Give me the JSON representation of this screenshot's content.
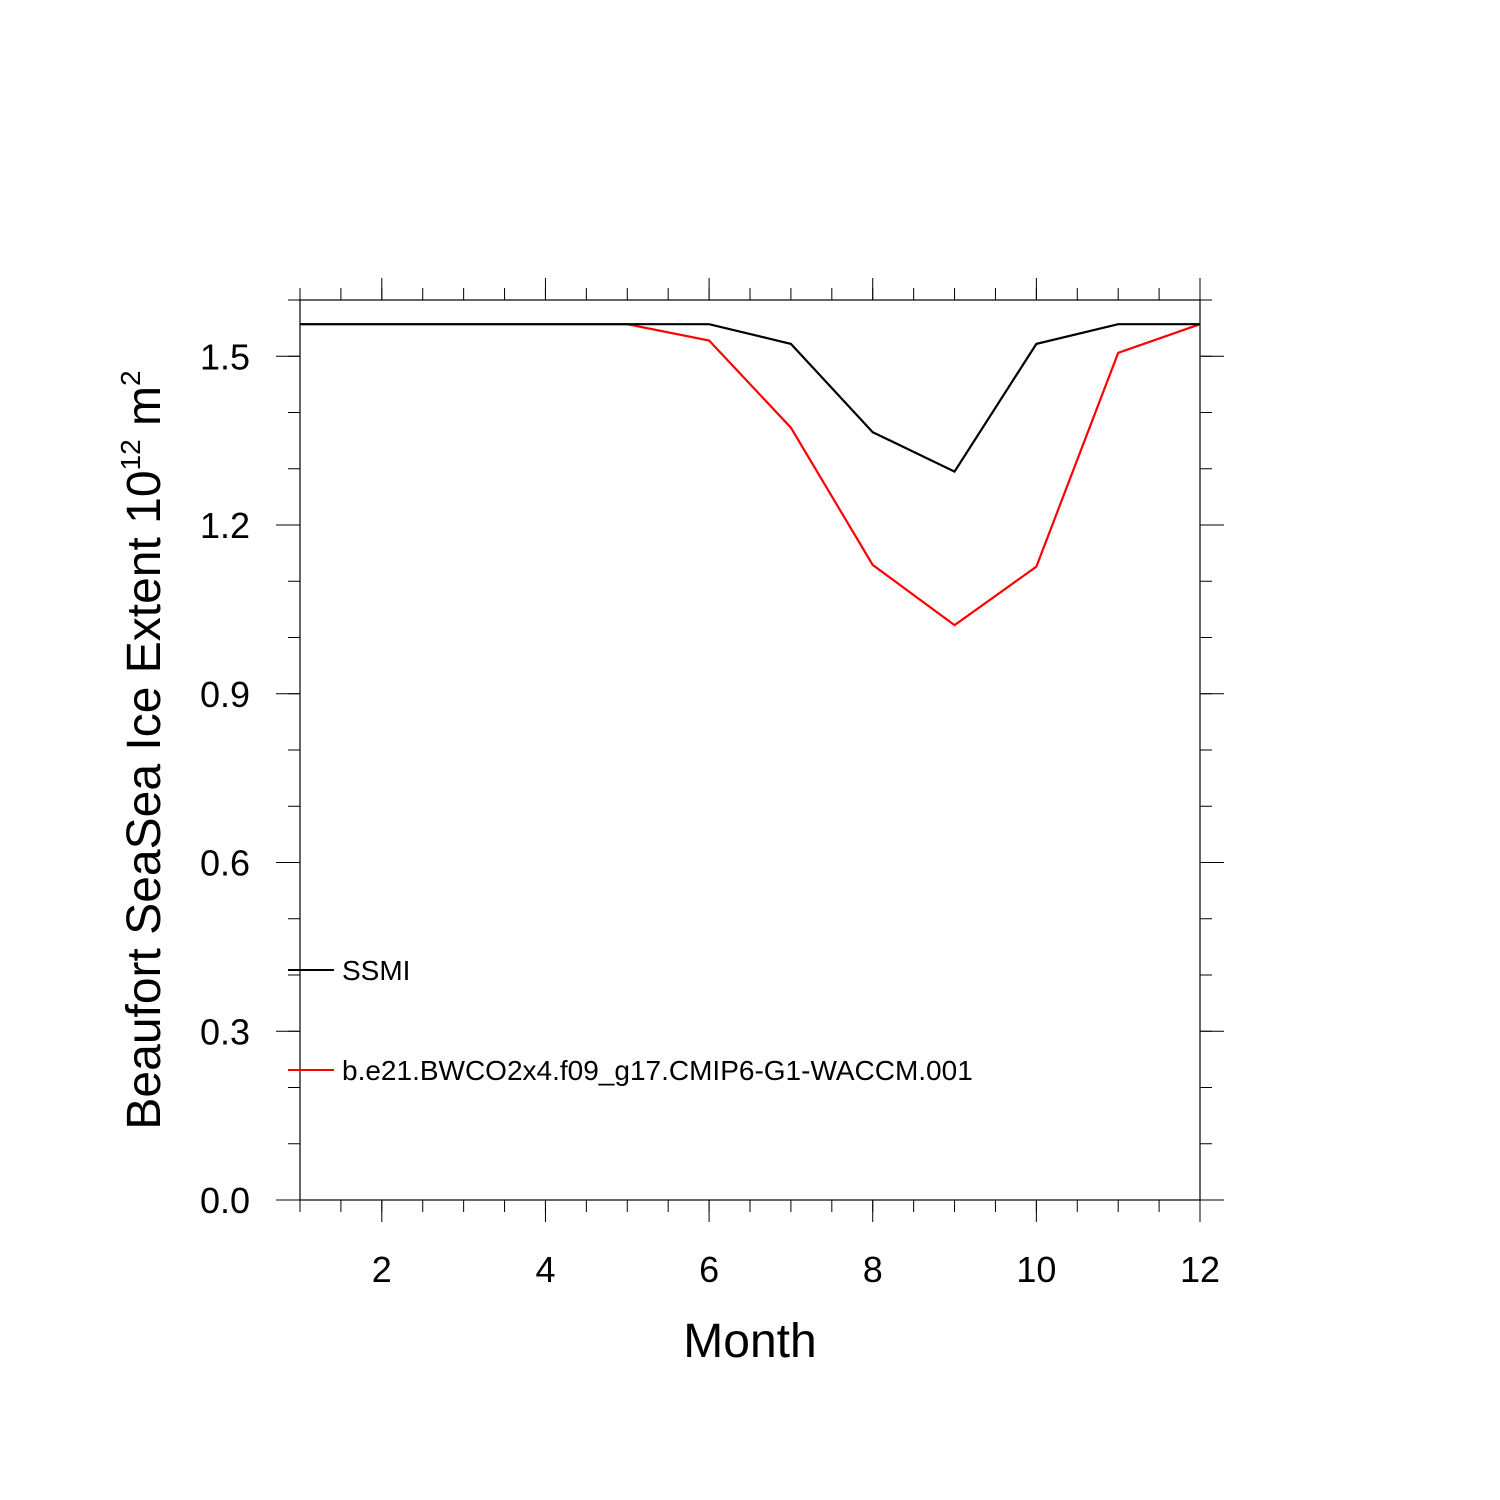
{
  "chart_data": {
    "type": "line",
    "xlabel": "Month",
    "ylabel": {
      "main": "Beaufort SeaSea Ice Extent 10",
      "exponent": "12",
      "unit": " m",
      "unit_exponent": "2"
    },
    "xlim": [
      1,
      12
    ],
    "ylim": [
      0,
      1.6
    ],
    "x_ticks": [
      2,
      4,
      6,
      8,
      10,
      12
    ],
    "x_tick_labels": [
      "2",
      "4",
      "6",
      "8",
      "10",
      "12"
    ],
    "y_ticks": [
      0.0,
      0.3,
      0.6,
      0.9,
      1.2,
      1.5
    ],
    "y_tick_labels": [
      "0.0",
      "0.3",
      "0.6",
      "0.9",
      "1.2",
      "1.5"
    ],
    "grid": false,
    "legend_position": "left",
    "x": [
      1,
      2,
      3,
      4,
      5,
      6,
      7,
      8,
      9,
      10,
      11,
      12
    ],
    "series": [
      {
        "name": "SSMI",
        "color": "#000000",
        "values": [
          1.557,
          1.557,
          1.557,
          1.557,
          1.557,
          1.557,
          1.522,
          1.365,
          1.295,
          1.522,
          1.557,
          1.557
        ]
      },
      {
        "name": "b.e21.BWCO2x4.f09_g17.CMIP6-G1-WACCM.001",
        "color": "#ff0000",
        "values": [
          1.557,
          1.557,
          1.557,
          1.557,
          1.557,
          1.528,
          1.373,
          1.129,
          1.022,
          1.126,
          1.506,
          1.557
        ]
      }
    ]
  }
}
